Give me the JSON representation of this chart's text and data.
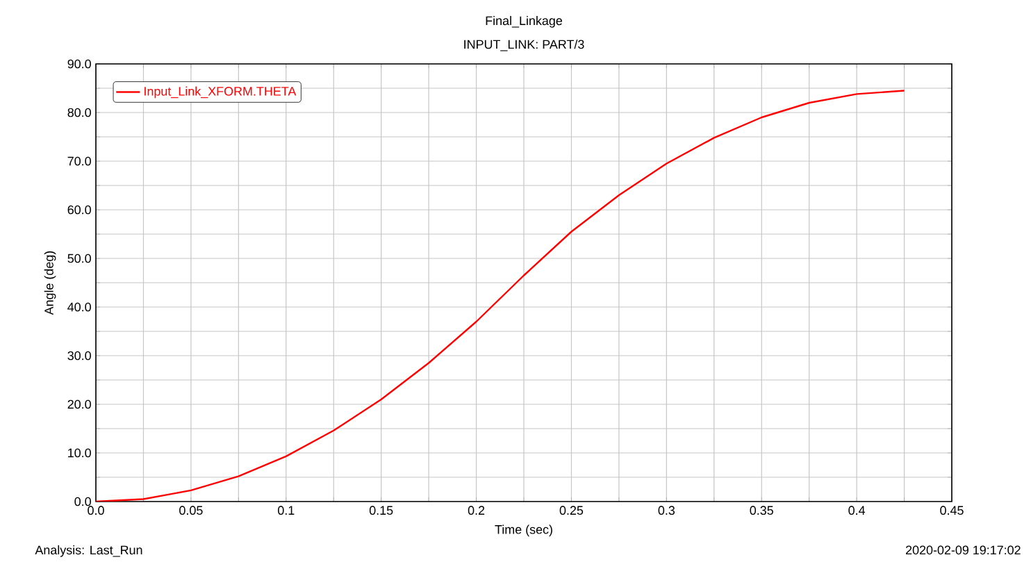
{
  "chart_data": {
    "type": "line",
    "title": "Final_Linkage",
    "subtitle": "INPUT_LINK: PART/3",
    "xlabel": "Time (sec)",
    "ylabel": "Angle (deg)",
    "annotations": [
      "Analysis:  Last_Run",
      "2020-02-09 19:17:02"
    ],
    "x": [
      0,
      0.025,
      0.05,
      0.075,
      0.1,
      0.125,
      0.15,
      0.175,
      0.2,
      0.225,
      0.25,
      0.275,
      0.3,
      0.325,
      0.35,
      0.375,
      0.4,
      0.425
    ],
    "series": [
      {
        "name": "Input_Link_XFORM.THETA",
        "color": "#ff0000",
        "values": [
          0,
          0.5,
          2.3,
          5.2,
          9.3,
          14.6,
          21,
          28.5,
          37,
          46.5,
          55.5,
          63,
          69.5,
          74.8,
          79,
          82,
          83.8,
          84.5
        ]
      }
    ],
    "xlim": [
      0,
      0.45
    ],
    "ylim": [
      0,
      90
    ],
    "xticks": [
      {
        "value": 0,
        "label": "0.0"
      },
      {
        "value": 0.025,
        "label": null
      },
      0.05,
      {
        "value": 0.075,
        "label": null
      },
      0.1,
      {
        "value": 0.125,
        "label": null
      },
      0.15,
      {
        "value": 0.175,
        "label": null
      },
      0.2,
      {
        "value": 0.225,
        "label": null
      },
      0.25,
      {
        "value": 0.275,
        "label": null
      },
      0.3,
      {
        "value": 0.325,
        "label": null
      },
      0.35,
      {
        "value": 0.375,
        "label": null
      },
      0.4,
      {
        "value": 0.425,
        "label": null
      },
      0.45
    ],
    "yticks": [
      {
        "value": 0,
        "label": "0.0"
      },
      {
        "value": 5,
        "label": null
      },
      {
        "value": 10,
        "label": "10.0"
      },
      {
        "value": 15,
        "label": null
      },
      {
        "value": 20,
        "label": "20.0"
      },
      {
        "value": 25,
        "label": null
      },
      {
        "value": 30,
        "label": "30.0"
      },
      {
        "value": 35,
        "label": null
      },
      {
        "value": 40,
        "label": "40.0"
      },
      {
        "value": 45,
        "label": null
      },
      {
        "value": 50,
        "label": "50.0"
      },
      {
        "value": 55,
        "label": null
      },
      {
        "value": 60,
        "label": "60.0"
      },
      {
        "value": 65,
        "label": null
      },
      {
        "value": 70,
        "label": "70.0"
      },
      {
        "value": 75,
        "label": null
      },
      {
        "value": 80,
        "label": "80.0"
      },
      {
        "value": 85,
        "label": null
      },
      {
        "value": 90,
        "label": "90.0"
      }
    ],
    "grid": true,
    "legend": "top left",
    "marker": "none",
    "line_style": "solid"
  }
}
